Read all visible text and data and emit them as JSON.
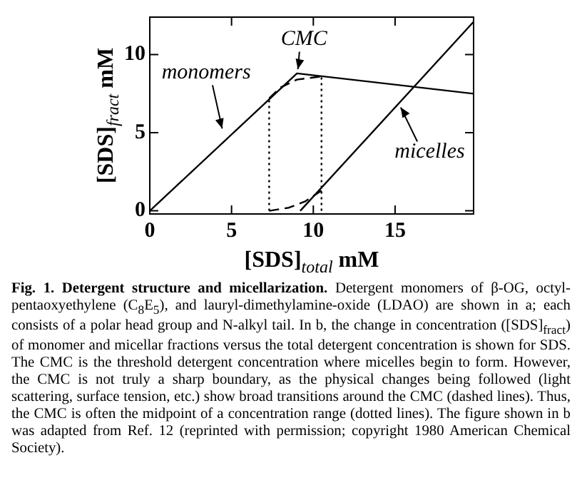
{
  "chart_data": {
    "type": "line",
    "xlabel": "[SDS]$_{total}$ mM",
    "ylabel": "[SDS]$_{fract}$ mM",
    "xlim": [
      0,
      19.8
    ],
    "ylim": [
      -0.2,
      12.4
    ],
    "xticks": [
      0,
      5,
      10,
      15
    ],
    "yticks": [
      0,
      5,
      10
    ],
    "legend": false,
    "grid": false,
    "marker": "none",
    "series": [
      {
        "color": "#000000",
        "line_style": "solid",
        "x": [
          0,
          9,
          19.8
        ],
        "values": [
          0,
          8.8,
          7.5
        ]
      },
      {
        "color": "#000000",
        "line_style": "solid",
        "x": [
          9.2,
          19.8
        ],
        "values": [
          0,
          12.1
        ]
      },
      {
        "color": "#000000",
        "line_style": "dashed",
        "x": [
          7.3,
          8,
          9,
          10.5
        ],
        "values": [
          7.2,
          7.9,
          8.4,
          8.6
        ]
      },
      {
        "color": "#000000",
        "line_style": "dashed",
        "x": [
          7.3,
          8.5,
          9.5,
          10.5
        ],
        "values": [
          0,
          0.2,
          0.6,
          1.3
        ]
      },
      {
        "color": "#000000",
        "line_style": "dotted",
        "x": [
          7.3,
          7.3
        ],
        "values": [
          0,
          7.2
        ]
      },
      {
        "color": "#000000",
        "line_style": "dotted",
        "x": [
          10.5,
          10.5
        ],
        "values": [
          0,
          8.6
        ]
      }
    ],
    "annotations": [
      {
        "text": "CMC",
        "x": 9,
        "y": 8.8
      },
      {
        "text": "monomers",
        "x": 4.5,
        "y": 5
      },
      {
        "text": "micelles",
        "x": 15.2,
        "y": 6.85
      },
      "Fig. 1. Detergent structure and micellarization.",
      "Detergent monomers of β-OG, octyl-pentaoxyethylene (C$_{8}$E$_{5}$), and lauryl-dimethylamine-oxide (LDAO) are shown in a; each consists of a polar head group and N-alkyl tail. In b, the change in concentration ([SDS]$_{fract}$) of monomer and micellar fractions versus the total detergent concentration is shown for SDS. The CMC is the threshold detergent concentration where micelles begin to form. However, the CMC is not truly a sharp boundary, as the physical changes being followed (light scattering, surface tension, etc.) show broad transitions around the CMC (dashed lines). Thus, the CMC is often the midpoint of a concentration range (dotted lines). The figure shown in b was adapted from Ref. 12 (reprinted with permission; copyright 1980 American Chemical Society)."
    ]
  }
}
